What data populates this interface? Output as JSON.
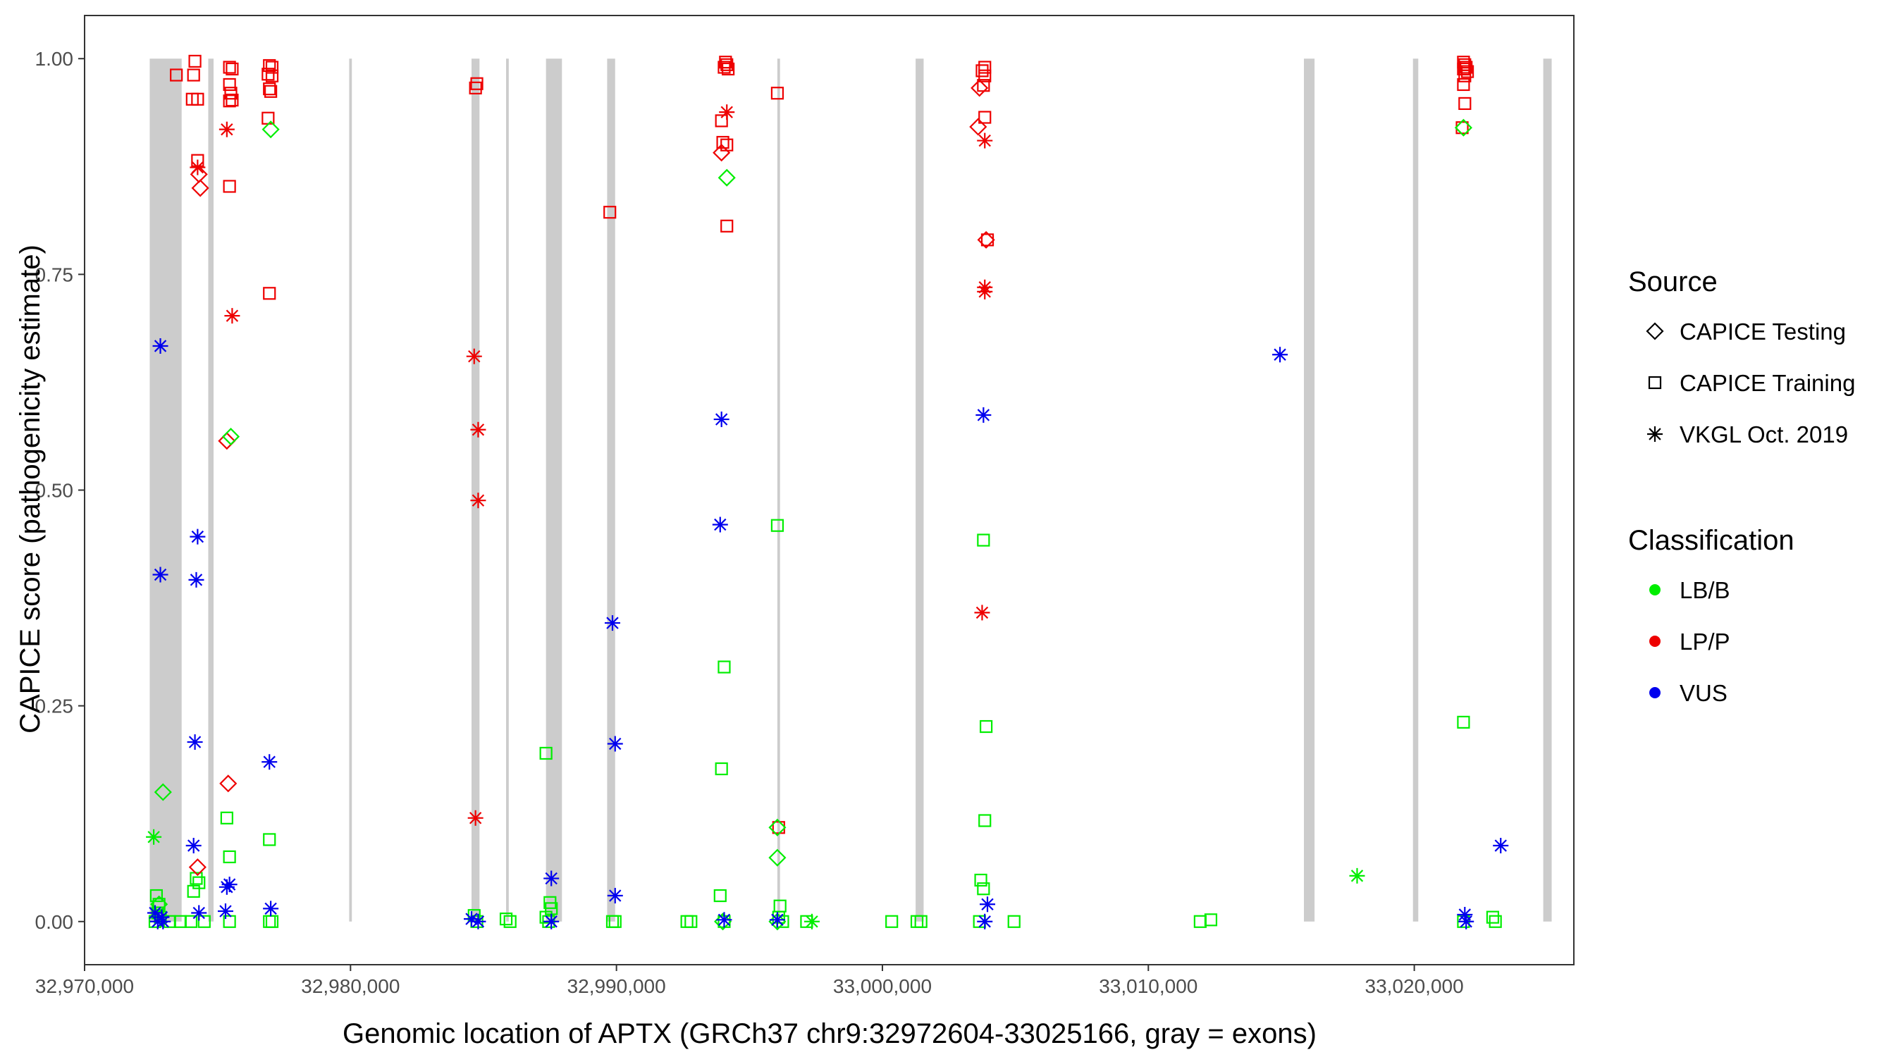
{
  "chart_data": {
    "type": "scatter",
    "xlabel": "Genomic location of APTX (GRCh37 chr9:32972604-33025166, gray = exons)",
    "ylabel": "CAPICE score (pathogenicity estimate)",
    "xlim": [
      32970000,
      33026000
    ],
    "ylim": [
      -0.05,
      1.05
    ],
    "x_ticks": [
      32970000,
      32980000,
      32990000,
      33000000,
      33010000,
      33020000
    ],
    "x_tick_labels": [
      "32,970,000",
      "32,980,000",
      "32,990,000",
      "33,000,000",
      "33,010,000",
      "33,020,000"
    ],
    "y_ticks": [
      0,
      0.25,
      0.5,
      0.75,
      1.0
    ],
    "y_tick_labels": [
      "0.00",
      "0.25",
      "0.50",
      "0.75",
      "1.00"
    ],
    "grid": false,
    "exons": [
      [
        32972450,
        32973650
      ],
      [
        32974650,
        32974850
      ],
      [
        32979950,
        32980050
      ],
      [
        32984550,
        32984850
      ],
      [
        32985850,
        32985950
      ],
      [
        32987350,
        32987950
      ],
      [
        32989650,
        32989950
      ],
      [
        32996050,
        32996150
      ],
      [
        33001250,
        33001550
      ],
      [
        33015850,
        33016250
      ],
      [
        33019950,
        33020150
      ],
      [
        33024850,
        33025166
      ]
    ],
    "legend_placement": "right",
    "legends": [
      {
        "title": "Source",
        "entries": [
          {
            "label": "CAPICE Testing",
            "shape": "diamond"
          },
          {
            "label": "CAPICE Training",
            "shape": "square"
          },
          {
            "label": "VKGL Oct. 2019",
            "shape": "asterisk"
          }
        ]
      },
      {
        "title": "Classification",
        "entries": [
          {
            "label": "LB/B",
            "color": "#00EE00"
          },
          {
            "label": "LP/P",
            "color": "#EE0000"
          },
          {
            "label": "VUS",
            "color": "#0000EE"
          }
        ]
      }
    ],
    "colors": {
      "LB/B": "#00EE00",
      "LP/P": "#EE0000",
      "VUS": "#0000EE",
      "exon": "#CCCCCC"
    },
    "series": [
      {
        "name": "CAPICE Training",
        "shape": "square",
        "color": "#EE0000",
        "points": [
          [
            32973450,
            0.981
          ],
          [
            32974150,
            0.997
          ],
          [
            32974100,
            0.981
          ],
          [
            32974050,
            0.953
          ],
          [
            32974250,
            0.953
          ],
          [
            32974250,
            0.882
          ],
          [
            32975450,
            0.99
          ],
          [
            32975550,
            0.988
          ],
          [
            32975450,
            0.97
          ],
          [
            32975500,
            0.96
          ],
          [
            32975450,
            0.951
          ],
          [
            32975550,
            0.952
          ],
          [
            32975450,
            0.852
          ],
          [
            32976950,
            0.992
          ],
          [
            32977050,
            0.99
          ],
          [
            32976900,
            0.982
          ],
          [
            32977050,
            0.98
          ],
          [
            32976950,
            0.965
          ],
          [
            32977000,
            0.962
          ],
          [
            32976900,
            0.931
          ],
          [
            32976950,
            0.728
          ],
          [
            32984750,
            0.971
          ],
          [
            32984700,
            0.966
          ],
          [
            32989750,
            0.822
          ],
          [
            32994100,
            0.996
          ],
          [
            32994150,
            0.993
          ],
          [
            32994050,
            0.99
          ],
          [
            32994200,
            0.988
          ],
          [
            32993950,
            0.928
          ],
          [
            32994000,
            0.903
          ],
          [
            32994150,
            0.9
          ],
          [
            32994150,
            0.806
          ],
          [
            32996050,
            0.96
          ],
          [
            32996100,
            0.109
          ],
          [
            33003850,
            0.99
          ],
          [
            33003750,
            0.986
          ],
          [
            33003850,
            0.98
          ],
          [
            33003800,
            0.969
          ],
          [
            33003850,
            0.932
          ],
          [
            33003950,
            0.79
          ],
          [
            33021850,
            0.996
          ],
          [
            33021900,
            0.993
          ],
          [
            33021950,
            0.99
          ],
          [
            33021850,
            0.988
          ],
          [
            33022000,
            0.985
          ],
          [
            33021900,
            0.98
          ],
          [
            33021850,
            0.97
          ],
          [
            33021900,
            0.948
          ],
          [
            33021800,
            0.92
          ]
        ]
      },
      {
        "name": "CAPICE Training",
        "shape": "square",
        "color": "#00EE00",
        "points": [
          [
            32972700,
            0.03
          ],
          [
            32972800,
            0.02
          ],
          [
            32972750,
            0.01
          ],
          [
            32972850,
            0.005
          ],
          [
            32972650,
            0.0
          ],
          [
            32973200,
            0.0
          ],
          [
            32973600,
            0.0
          ],
          [
            32974000,
            0.0
          ],
          [
            32974100,
            0.035
          ],
          [
            32974200,
            0.05
          ],
          [
            32974300,
            0.045
          ],
          [
            32974500,
            0.0
          ],
          [
            32975350,
            0.12
          ],
          [
            32975450,
            0.075
          ],
          [
            32975450,
            0.0
          ],
          [
            32976950,
            0.095
          ],
          [
            32976950,
            0.0
          ],
          [
            32977050,
            0.0
          ],
          [
            32984650,
            0.007
          ],
          [
            32984750,
            0.0
          ],
          [
            32985850,
            0.003
          ],
          [
            32986000,
            0.0
          ],
          [
            32987350,
            0.195
          ],
          [
            32987500,
            0.022
          ],
          [
            32987550,
            0.015
          ],
          [
            32987350,
            0.005
          ],
          [
            32987450,
            0.0
          ],
          [
            32989950,
            0.0
          ],
          [
            32989850,
            0.0
          ],
          [
            32992650,
            0.0
          ],
          [
            32992800,
            0.0
          ],
          [
            32994050,
            0.295
          ],
          [
            32993950,
            0.177
          ],
          [
            32993900,
            0.03
          ],
          [
            32994050,
            0.0
          ],
          [
            32996050,
            0.459
          ],
          [
            32996150,
            0.018
          ],
          [
            32996100,
            0.005
          ],
          [
            32996250,
            0.0
          ],
          [
            32997150,
            0.0
          ],
          [
            33000350,
            0.0
          ],
          [
            33001300,
            0.0
          ],
          [
            33001450,
            0.0
          ],
          [
            33003800,
            0.442
          ],
          [
            33003900,
            0.226
          ],
          [
            33003850,
            0.117
          ],
          [
            33003700,
            0.048
          ],
          [
            33003800,
            0.038
          ],
          [
            33003650,
            0.0
          ],
          [
            33004950,
            0.0
          ],
          [
            33011950,
            0.0
          ],
          [
            33012350,
            0.002
          ],
          [
            33021850,
            0.231
          ],
          [
            33021850,
            0.0
          ],
          [
            33022950,
            0.005
          ],
          [
            33023050,
            0.0
          ]
        ]
      },
      {
        "name": "CAPICE Testing",
        "shape": "diamond",
        "color": "#EE0000",
        "points": [
          [
            32974300,
            0.866
          ],
          [
            32974350,
            0.85
          ],
          [
            32975350,
            0.557
          ],
          [
            32975400,
            0.16
          ],
          [
            32974250,
            0.063
          ],
          [
            32993950,
            0.891
          ],
          [
            33003650,
            0.966
          ],
          [
            33003600,
            0.921
          ],
          [
            33003900,
            0.79
          ]
        ]
      },
      {
        "name": "CAPICE Testing",
        "shape": "diamond",
        "color": "#00EE00",
        "points": [
          [
            32977000,
            0.918
          ],
          [
            32975500,
            0.562
          ],
          [
            32972950,
            0.15
          ],
          [
            32972800,
            0.02
          ],
          [
            32994150,
            0.862
          ],
          [
            32996050,
            0.109
          ],
          [
            32996050,
            0.074
          ],
          [
            32994000,
            0.0
          ],
          [
            32996050,
            0.0
          ],
          [
            33021850,
            0.92
          ]
        ]
      },
      {
        "name": "VKGL Oct. 2019",
        "shape": "asterisk",
        "color": "#EE0000",
        "points": [
          [
            32974250,
            0.874
          ],
          [
            32975350,
            0.918
          ],
          [
            32975550,
            0.702
          ],
          [
            32984650,
            0.655
          ],
          [
            32984800,
            0.57
          ],
          [
            32984800,
            0.488
          ],
          [
            32984700,
            0.12
          ],
          [
            32994150,
            0.938
          ],
          [
            33003850,
            0.905
          ],
          [
            33003850,
            0.735
          ],
          [
            33003850,
            0.73
          ],
          [
            33003750,
            0.358
          ]
        ]
      },
      {
        "name": "VKGL Oct. 2019",
        "shape": "asterisk",
        "color": "#00EE00",
        "points": [
          [
            32972600,
            0.098
          ],
          [
            33017850,
            0.053
          ],
          [
            32997350,
            0.0
          ]
        ]
      },
      {
        "name": "VKGL Oct. 2019",
        "shape": "asterisk",
        "color": "#0000EE",
        "points": [
          [
            32972850,
            0.667
          ],
          [
            32972850,
            0.402
          ],
          [
            32972650,
            0.01
          ],
          [
            32972900,
            0.005
          ],
          [
            32972750,
            0.0
          ],
          [
            32972950,
            0.0
          ],
          [
            32974250,
            0.446
          ],
          [
            32974200,
            0.396
          ],
          [
            32974150,
            0.208
          ],
          [
            32974100,
            0.088
          ],
          [
            32974300,
            0.01
          ],
          [
            32975450,
            0.043
          ],
          [
            32975350,
            0.04
          ],
          [
            32975300,
            0.012
          ],
          [
            32976950,
            0.185
          ],
          [
            32977000,
            0.015
          ],
          [
            32984550,
            0.003
          ],
          [
            32984800,
            0.0
          ],
          [
            32987550,
            0.05
          ],
          [
            32987550,
            0.0
          ],
          [
            32989850,
            0.346
          ],
          [
            32989950,
            0.206
          ],
          [
            32989950,
            0.03
          ],
          [
            32993950,
            0.582
          ],
          [
            32993900,
            0.46
          ],
          [
            32994050,
            0.002
          ],
          [
            32996050,
            0.002
          ],
          [
            33003800,
            0.587
          ],
          [
            33003950,
            0.02
          ],
          [
            33003850,
            0.0
          ],
          [
            33014950,
            0.657
          ],
          [
            33023250,
            0.088
          ],
          [
            33021900,
            0.008
          ],
          [
            33021950,
            0.0
          ]
        ]
      }
    ]
  }
}
